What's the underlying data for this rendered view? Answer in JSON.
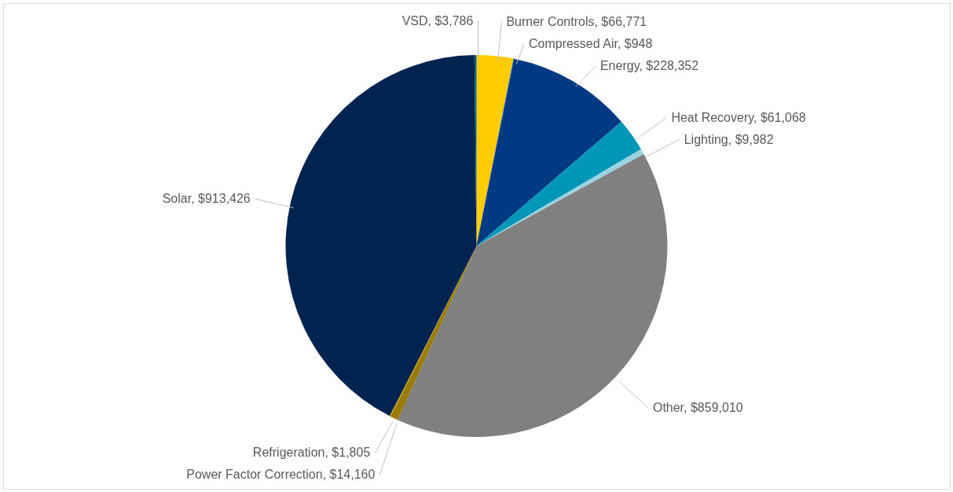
{
  "chart_data": {
    "type": "pie",
    "categories": [
      "Burner Controls",
      "Compressed Air",
      "Energy",
      "Heat Recovery",
      "Lighting",
      "Other",
      "Power Factor Correction",
      "Refrigeration",
      "Solar",
      "VSD"
    ],
    "values": [
      66771,
      948,
      228352,
      61068,
      9982,
      859010,
      14160,
      1805,
      913426,
      3786
    ],
    "value_labels": [
      "$66,771",
      "$948",
      "$228,352",
      "$61,068",
      "$9,982",
      "$859,010",
      "$14,160",
      "$1,805",
      "$913,426",
      "$3,786"
    ],
    "colors": [
      "#ffcc00",
      "#4a7fb5",
      "#003a84",
      "#0096b8",
      "#9ad3e0",
      "#808080",
      "#9a7a00",
      "#c8a000",
      "#002350",
      "#006070"
    ]
  }
}
